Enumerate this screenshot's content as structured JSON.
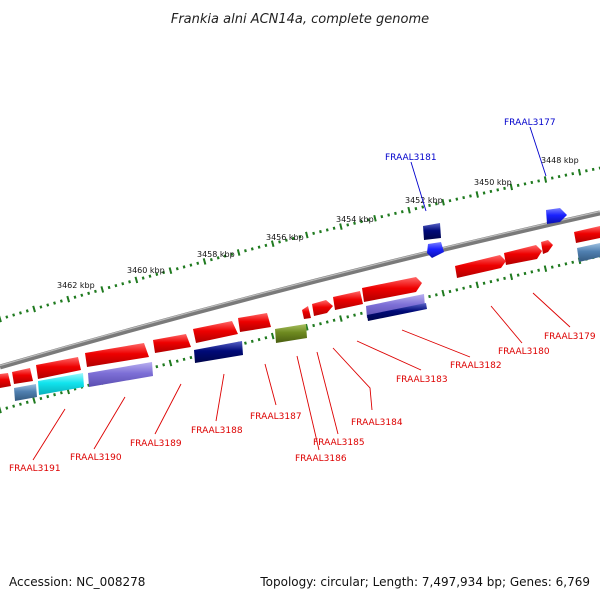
{
  "title": "Frankia alni ACN14a, complete genome",
  "footer": {
    "accession": "Accession: NC_008278",
    "topology": "Topology: circular; Length: 7,497,934 bp; Genes: 6,769"
  },
  "axis_labels": [
    "3448 kbp",
    "3450 kbp",
    "3452 kbp",
    "3454 kbp",
    "3456 kbp",
    "3458 kbp",
    "3460 kbp",
    "3462 kbp"
  ],
  "colors": {
    "red": "#ee0000",
    "navy": "#000a78",
    "blue": "#1a22ff",
    "olive": "#6e8a20",
    "lavender": "#7d6fd6",
    "cyan": "#11e4ee",
    "steel": "#4f7fb0",
    "tick": "#1f7a1f",
    "backbone": "#7a7a7a",
    "label_red": "#dd0000",
    "label_blue": "#0000cc"
  },
  "gene_labels": [
    {
      "text": "FRAAL3177",
      "color": "blue"
    },
    {
      "text": "FRAAL3181",
      "color": "blue"
    },
    {
      "text": "FRAAL3179",
      "color": "red"
    },
    {
      "text": "FRAAL3180",
      "color": "red"
    },
    {
      "text": "FRAAL3182",
      "color": "red"
    },
    {
      "text": "FRAAL3183",
      "color": "red"
    },
    {
      "text": "FRAAL3184",
      "color": "red"
    },
    {
      "text": "FRAAL3185",
      "color": "red"
    },
    {
      "text": "FRAAL3186",
      "color": "red"
    },
    {
      "text": "FRAAL3187",
      "color": "red"
    },
    {
      "text": "FRAAL3188",
      "color": "red"
    },
    {
      "text": "FRAAL3189",
      "color": "red"
    },
    {
      "text": "FRAAL3190",
      "color": "red"
    },
    {
      "text": "FRAAL3191",
      "color": "red"
    }
  ]
}
